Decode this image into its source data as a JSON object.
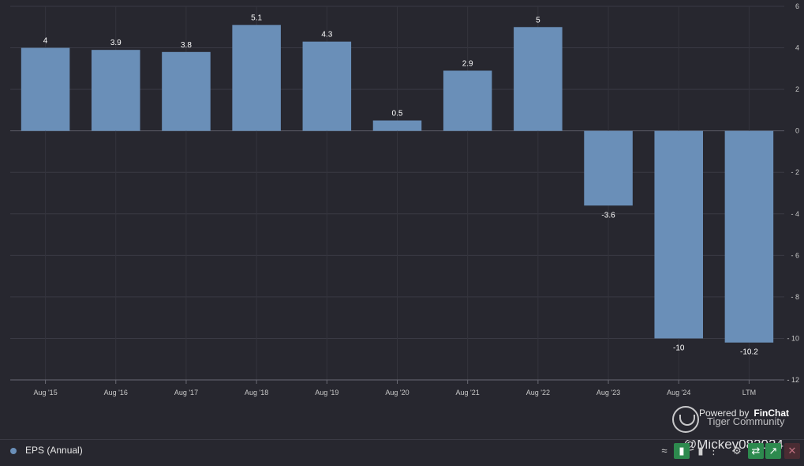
{
  "chart_data": {
    "type": "bar",
    "categories": [
      "Aug '15",
      "Aug '16",
      "Aug '17",
      "Aug '18",
      "Aug '19",
      "Aug '20",
      "Aug '21",
      "Aug '22",
      "Aug '23",
      "Aug '24",
      "LTM"
    ],
    "values": [
      4,
      3.9,
      3.8,
      5.1,
      4.3,
      0.5,
      2.9,
      5,
      -3.6,
      -10,
      -10.2
    ],
    "data_labels": [
      "4",
      "3.9",
      "3.8",
      "5.1",
      "4.3",
      "0.5",
      "2.9",
      "5",
      "-3.6",
      "-10",
      "-10.2"
    ],
    "ylim": [
      -12,
      6
    ],
    "yticks": [
      6,
      4,
      2,
      0,
      -2,
      -4,
      -6,
      -8,
      -10,
      -12
    ],
    "ytick_labels": [
      "6",
      "4",
      "2",
      "0",
      "- 2",
      "- 4",
      "- 6",
      "- 8",
      "- 10",
      "- 12"
    ],
    "grid": true,
    "bar_color": "#6a8fb8",
    "legend": {
      "position": "bottom-left",
      "entries": [
        "EPS (Annual)"
      ]
    }
  },
  "watermark": {
    "powered": "Powered by",
    "brand": "FinChat",
    "community": "Tiger Community",
    "handle": "@Mickey082024"
  },
  "legend_bar": {
    "series_label": "EPS (Annual)",
    "toolbar": [
      {
        "icon": "line-chart-icon",
        "glyph": "≈"
      },
      {
        "icon": "bar-chart-icon",
        "glyph": "▮"
      },
      {
        "icon": "bar-chart-alt-icon",
        "glyph": "▮"
      },
      {
        "icon": "more-icon",
        "glyph": "⋮"
      },
      {
        "icon": "gear-icon",
        "glyph": "⚙"
      },
      {
        "icon": "link-icon",
        "glyph": "⇄"
      },
      {
        "icon": "share-icon",
        "glyph": "↗"
      },
      {
        "icon": "close-icon",
        "glyph": "✕"
      }
    ]
  }
}
